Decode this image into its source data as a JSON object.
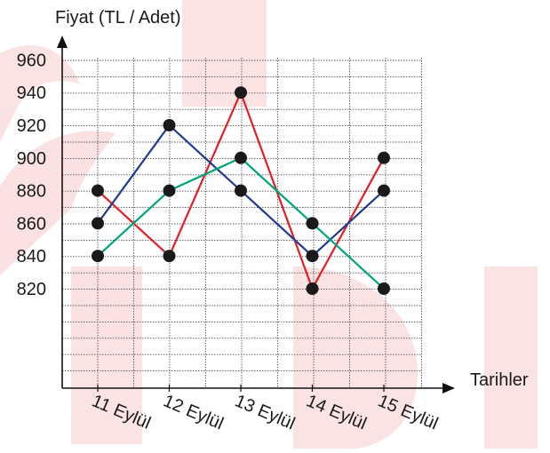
{
  "chart_data": {
    "type": "line",
    "title": "",
    "ylabel": "Fiyat (TL / Adet)",
    "xlabel": "Tarihler",
    "categories": [
      "11 Eylül",
      "12 Eylül",
      "13 Eylül",
      "14 Eylül",
      "15 Eylül"
    ],
    "y_ticks": [
      960,
      940,
      920,
      900,
      880,
      860,
      840,
      820
    ],
    "ylim": [
      780,
      965
    ],
    "grid": true,
    "legend": "none",
    "series": [
      {
        "color": "#e31e24",
        "values": [
          880,
          840,
          940,
          820,
          900
        ]
      },
      {
        "color": "#213a8f",
        "values": [
          860,
          920,
          880,
          840,
          880
        ]
      },
      {
        "color": "#00a37a",
        "values": [
          840,
          880,
          900,
          860,
          820
        ]
      }
    ],
    "marker_color": "#1a1a1a"
  },
  "watermark_color": "#e31e24"
}
